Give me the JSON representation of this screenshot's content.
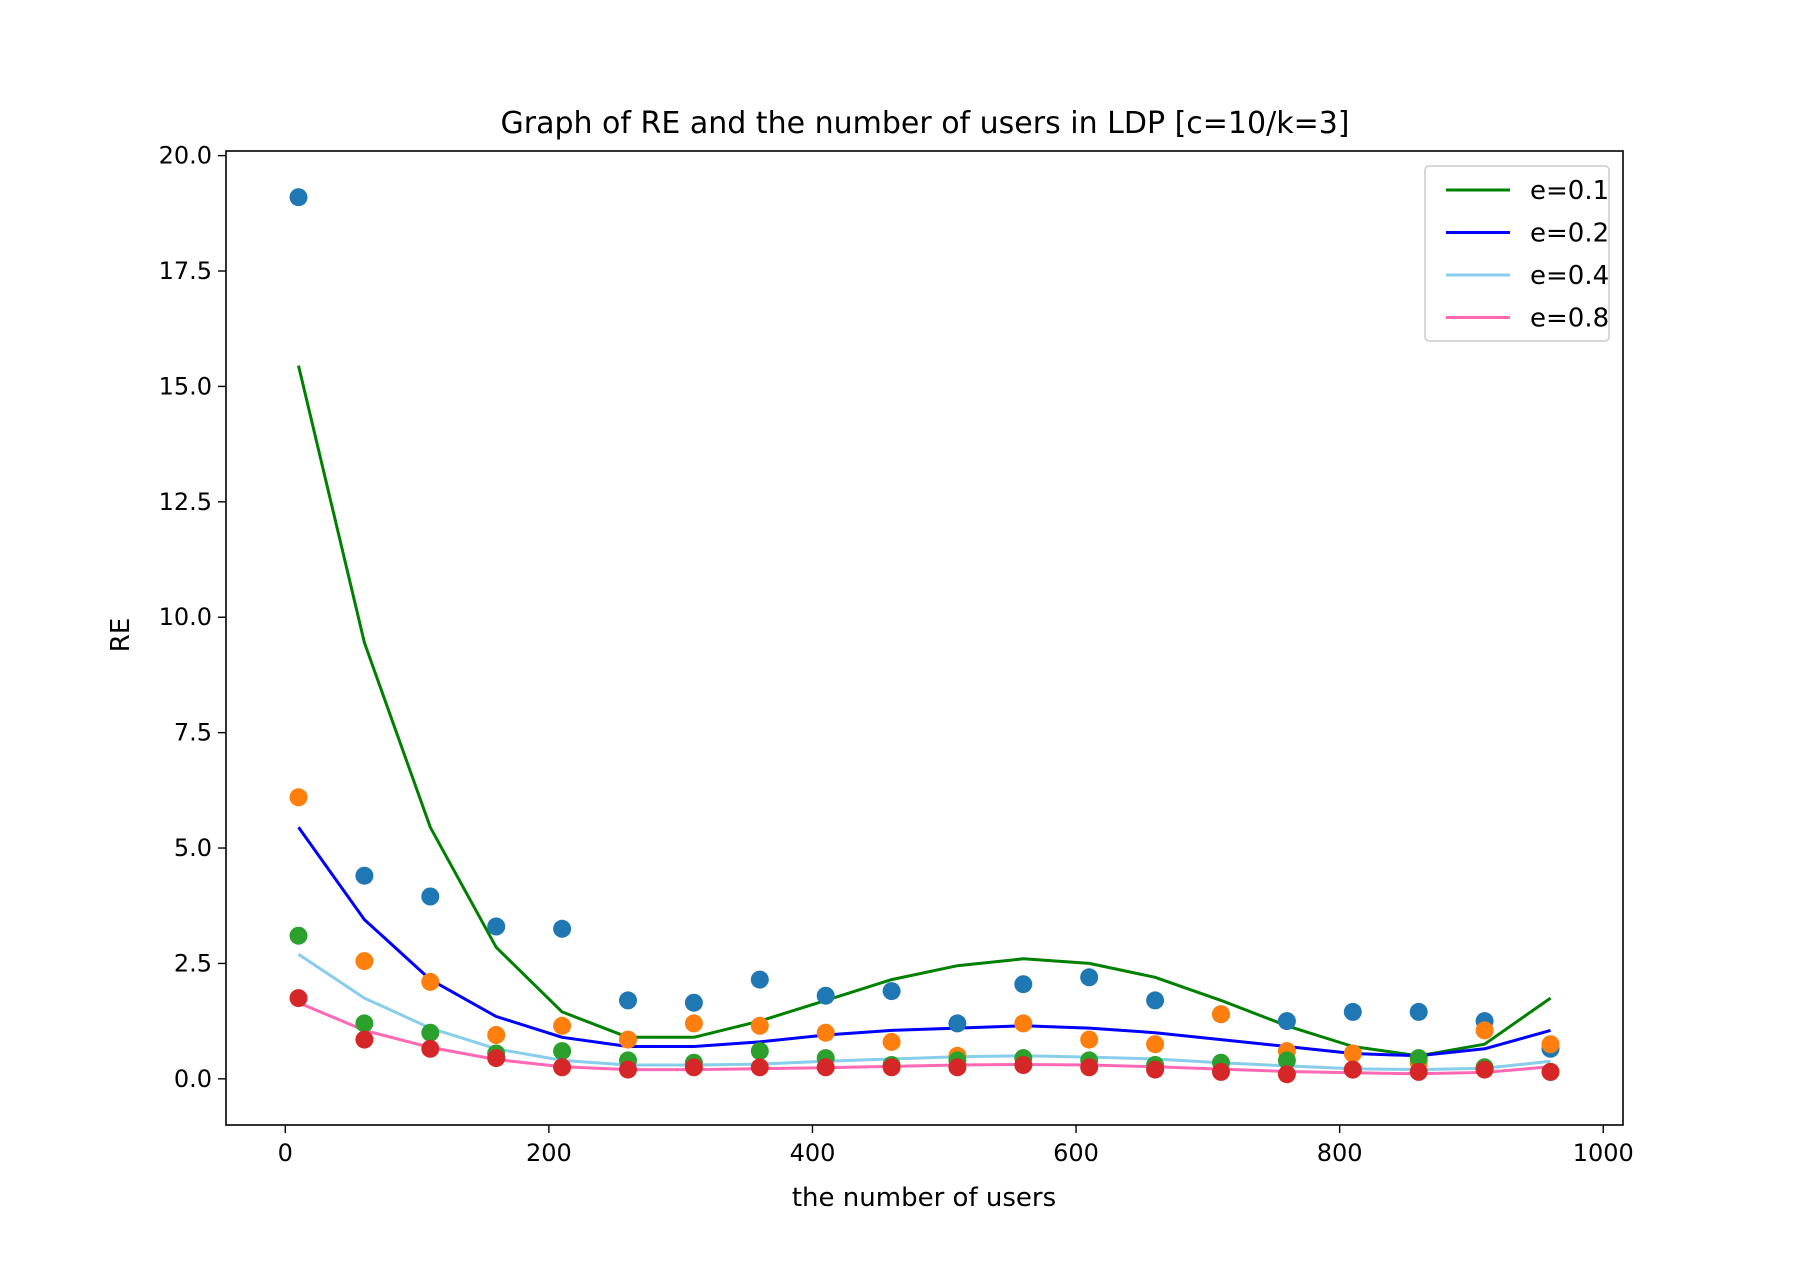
{
  "chart_data": {
    "type": "line",
    "title": "Graph of RE and the number of users in LDP [c=10/k=3]",
    "xlabel": "the number of users",
    "ylabel": "RE",
    "xlim": [
      -45,
      1015
    ],
    "ylim": [
      -1.0,
      20.1
    ],
    "xticks": [
      0,
      200,
      400,
      600,
      800,
      1000
    ],
    "xtick_labels": [
      "0",
      "200",
      "400",
      "600",
      "800",
      "1000"
    ],
    "yticks": [
      0,
      2.5,
      5,
      7.5,
      10,
      12.5,
      15,
      17.5,
      20
    ],
    "ytick_labels": [
      "0.0",
      "2.5",
      "5.0",
      "7.5",
      "10.0",
      "12.5",
      "15.0",
      "17.5",
      "20.0"
    ],
    "grid": false,
    "legend_position": "top-right",
    "x": [
      10,
      60,
      110,
      160,
      210,
      260,
      310,
      360,
      410,
      460,
      510,
      560,
      610,
      660,
      710,
      760,
      810,
      860,
      910,
      960
    ],
    "series": [
      {
        "name": "e=0.1",
        "style": "line",
        "color": "#008000",
        "values": [
          15.45,
          9.45,
          5.45,
          2.85,
          1.45,
          0.9,
          0.9,
          1.25,
          1.7,
          2.15,
          2.45,
          2.6,
          2.5,
          2.2,
          1.7,
          1.15,
          0.7,
          0.5,
          0.75,
          1.75
        ]
      },
      {
        "name": "e=0.2",
        "style": "line",
        "color": "#0000ff",
        "values": [
          5.45,
          3.45,
          2.15,
          1.35,
          0.9,
          0.7,
          0.7,
          0.8,
          0.95,
          1.05,
          1.1,
          1.15,
          1.1,
          1.0,
          0.85,
          0.7,
          0.55,
          0.5,
          0.65,
          1.05
        ]
      },
      {
        "name": "e=0.4",
        "style": "line",
        "color": "#87ceeb",
        "values": [
          2.7,
          1.75,
          1.1,
          0.65,
          0.4,
          0.3,
          0.3,
          0.32,
          0.38,
          0.43,
          0.48,
          0.5,
          0.47,
          0.43,
          0.35,
          0.28,
          0.22,
          0.2,
          0.23,
          0.38
        ]
      },
      {
        "name": "e=0.8",
        "style": "line",
        "color": "#ff69b4",
        "values": [
          1.65,
          1.05,
          0.68,
          0.42,
          0.26,
          0.2,
          0.2,
          0.22,
          0.24,
          0.27,
          0.3,
          0.31,
          0.3,
          0.26,
          0.21,
          0.16,
          0.13,
          0.11,
          0.14,
          0.26
        ]
      },
      {
        "style": "scatter",
        "color": "#1f77b4",
        "values": [
          19.1,
          4.4,
          3.95,
          3.3,
          3.25,
          1.7,
          1.65,
          2.15,
          1.8,
          1.9,
          1.2,
          2.05,
          2.2,
          1.7,
          1.4,
          1.25,
          1.45,
          1.45,
          1.25,
          0.65
        ]
      },
      {
        "style": "scatter",
        "color": "#ff7f0e",
        "values": [
          6.1,
          2.55,
          2.1,
          0.95,
          1.15,
          0.85,
          1.2,
          1.15,
          1.0,
          0.8,
          0.5,
          1.2,
          0.85,
          0.75,
          1.4,
          0.6,
          0.55,
          0.35,
          1.05,
          0.75
        ]
      },
      {
        "style": "scatter",
        "color": "#2ca02c",
        "values": [
          3.1,
          1.2,
          1.0,
          0.55,
          0.6,
          0.4,
          0.35,
          0.6,
          0.45,
          0.3,
          0.4,
          0.45,
          0.4,
          0.3,
          0.35,
          0.4,
          0.2,
          0.45,
          0.25,
          0.15
        ]
      },
      {
        "style": "scatter",
        "color": "#d62728",
        "values": [
          1.75,
          0.85,
          0.65,
          0.45,
          0.25,
          0.2,
          0.25,
          0.25,
          0.25,
          0.25,
          0.25,
          0.3,
          0.25,
          0.2,
          0.15,
          0.1,
          0.2,
          0.15,
          0.2,
          0.15
        ]
      }
    ]
  }
}
